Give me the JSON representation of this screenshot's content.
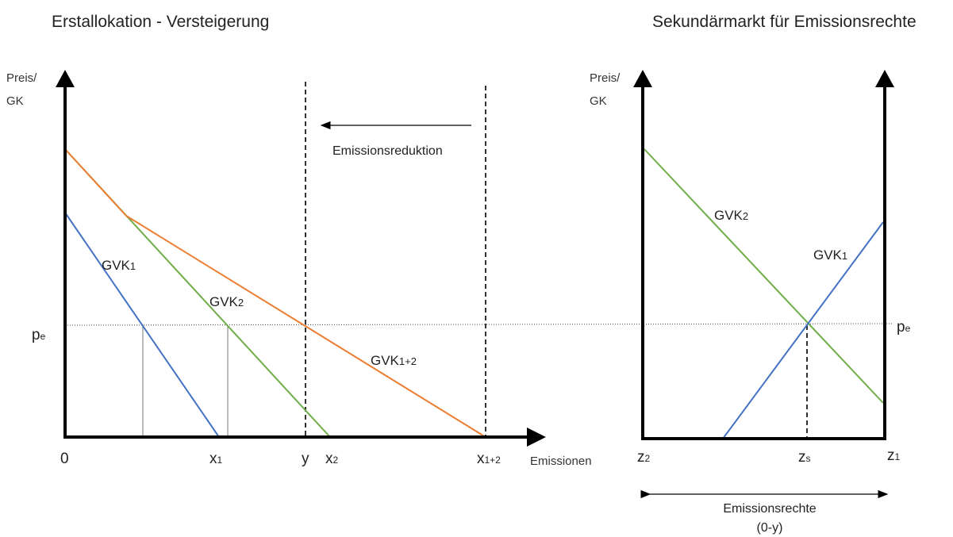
{
  "left_panel": {
    "title": "Erstallokation - Versteigerung",
    "y_axis_label_line1": "Preis/",
    "y_axis_label_line2": "GK",
    "x_axis_label": "Emissionen",
    "origin_label": "0",
    "price_label": {
      "main": "p",
      "sub": "e"
    },
    "x_ticks": {
      "x1": {
        "main": "x",
        "sub": "1"
      },
      "y": {
        "main": "y",
        "sub": ""
      },
      "x2": {
        "main": "x",
        "sub": "2"
      },
      "x12": {
        "main": "x",
        "sub": "1+2"
      }
    },
    "curves": {
      "gvk1": {
        "main": "GVK",
        "sub": "1",
        "color": "#4472C4"
      },
      "gvk2": {
        "main": "GVK",
        "sub": "2",
        "color": "#70AD47"
      },
      "gvk12": {
        "main": "GVK",
        "sub": "1+2",
        "color": "#ED7D31"
      }
    },
    "reduction_label": "Emissionsreduktion"
  },
  "right_panel": {
    "title": "Sekundärmarkt für Emissionsrechte",
    "y_axis_label_line1": "Preis/",
    "y_axis_label_line2": "GK",
    "price_label": {
      "main": "p",
      "sub": "e"
    },
    "x_ticks": {
      "z2": {
        "main": "z",
        "sub": "2"
      },
      "zs": {
        "main": "z",
        "sub": "s"
      },
      "z1": {
        "main": "z",
        "sub": "1"
      }
    },
    "curves": {
      "gvk2": {
        "main": "GVK",
        "sub": "2",
        "color": "#70AD47"
      },
      "gvk1": {
        "main": "GVK",
        "sub": "1",
        "color": "#4472C4"
      }
    },
    "rights_label_line1": "Emissionsrechte",
    "rights_label_line2": "(0-y)"
  }
}
